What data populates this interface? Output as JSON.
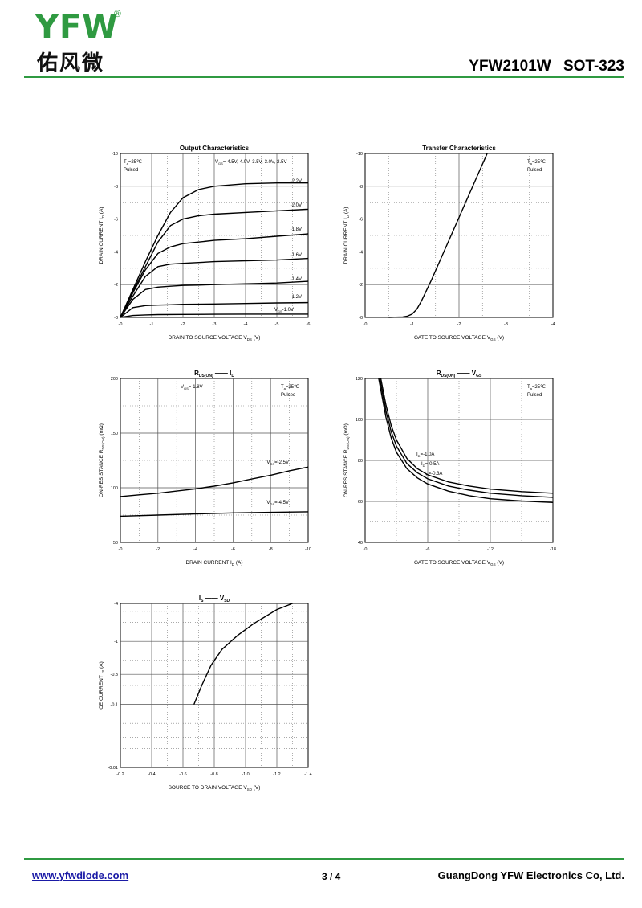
{
  "header": {
    "logo_text": "YFW",
    "logo_reg": "®",
    "logo_cn": "佑风微",
    "part_number": "YFW2101W SOT-323"
  },
  "footer": {
    "website": "www.yfwdiode.com",
    "page": "3 / 4",
    "company": "GuangDong YFW Electronics Co, Ltd."
  },
  "colors": {
    "brand_green": "#2f9a41",
    "link_blue": "#1a1aa6",
    "grid": "#555555"
  },
  "chart_data": [
    {
      "id": "output",
      "type": "line",
      "title": "Output Characteristics",
      "xlabel": "DRAIN TO SOURCE VOLTAGE",
      "xlabel_sym": "V",
      "xlabel_sub": "DS",
      "xlabel_unit": "(V)",
      "ylabel": "DRAIN CURRENT",
      "ylabel_sym": "I",
      "ylabel_sub": "D",
      "ylabel_unit": "(A)",
      "xlim": [
        0,
        -6
      ],
      "ylim": [
        0,
        -10
      ],
      "xticks": [
        "-0",
        "-1",
        "-2",
        "-3",
        "-4",
        "-5",
        "-6"
      ],
      "yticks": [
        "-0",
        "-2",
        "-4",
        "-6",
        "-8",
        "-10"
      ],
      "notes": [
        "T",
        "Pulsed"
      ],
      "note_ta": "=25℃",
      "vgs_note": "=-4.5V,-4.0V,-3.5V,-3.0V,-2.5V",
      "series": [
        {
          "name": "-2.2V",
          "x": [
            0,
            -0.4,
            -0.8,
            -1.2,
            -1.6,
            -2.0,
            -2.5,
            -3,
            -4,
            -5,
            -6
          ],
          "y": [
            0,
            -1.7,
            -3.4,
            -5.0,
            -6.4,
            -7.3,
            -7.8,
            -8.0,
            -8.15,
            -8.2,
            -8.2
          ]
        },
        {
          "name": "-2.0V",
          "x": [
            0,
            -0.4,
            -0.8,
            -1.2,
            -1.6,
            -2.0,
            -2.5,
            -3,
            -4,
            -5,
            -6
          ],
          "y": [
            0,
            -1.6,
            -3.1,
            -4.6,
            -5.6,
            -6.0,
            -6.2,
            -6.3,
            -6.4,
            -6.5,
            -6.6
          ]
        },
        {
          "name": "-1.8V",
          "x": [
            0,
            -0.4,
            -0.8,
            -1.2,
            -1.6,
            -2.0,
            -2.5,
            -3,
            -4,
            -5,
            -6
          ],
          "y": [
            0,
            -1.5,
            -2.9,
            -3.9,
            -4.3,
            -4.5,
            -4.6,
            -4.7,
            -4.8,
            -4.95,
            -5.1
          ]
        },
        {
          "name": "-1.6V",
          "x": [
            0,
            -0.4,
            -0.8,
            -1.2,
            -1.6,
            -2.0,
            -2.5,
            -3,
            -4,
            -5,
            -6
          ],
          "y": [
            0,
            -1.3,
            -2.5,
            -3.1,
            -3.25,
            -3.3,
            -3.35,
            -3.4,
            -3.45,
            -3.5,
            -3.6
          ]
        },
        {
          "name": "-1.4V",
          "x": [
            0,
            -0.4,
            -0.8,
            -1.2,
            -1.6,
            -2.0,
            -2.5,
            -3,
            -4,
            -5,
            -6
          ],
          "y": [
            0,
            -1.1,
            -1.7,
            -1.85,
            -1.9,
            -1.95,
            -1.97,
            -2.0,
            -2.05,
            -2.1,
            -2.2
          ]
        },
        {
          "name": "-1.2V",
          "x": [
            0,
            -0.4,
            -0.8,
            -1.2,
            -1.6,
            -2.0,
            -3,
            -4,
            -5,
            -6
          ],
          "y": [
            0,
            -0.6,
            -0.72,
            -0.75,
            -0.77,
            -0.8,
            -0.82,
            -0.85,
            -0.88,
            -0.9
          ]
        },
        {
          "name": "-1.0V",
          "x": [
            0,
            -0.4,
            -0.8,
            -1.2,
            -2,
            -3,
            -4,
            -5,
            -6
          ],
          "y": [
            0,
            -0.12,
            -0.15,
            -0.17,
            -0.18,
            -0.19,
            -0.2,
            -0.2,
            -0.2
          ]
        }
      ]
    },
    {
      "id": "transfer",
      "type": "line",
      "title": "Transfer Characteristics",
      "xlabel": "GATE TO SOURCE VOLTAGE",
      "xlabel_sym": "V",
      "xlabel_sub": "GS",
      "xlabel_unit": "(V)",
      "ylabel": "DRAIN CURRENT",
      "ylabel_sym": "I",
      "ylabel_sub": "D",
      "ylabel_unit": "(A)",
      "xlim": [
        0,
        -4
      ],
      "ylim": [
        0,
        -10
      ],
      "xticks": [
        "-0",
        "-1",
        "-2",
        "-3",
        "-4"
      ],
      "yticks": [
        "-0",
        "-2",
        "-4",
        "-6",
        "-8",
        "-10"
      ],
      "notes": [
        "T",
        "Pulsed"
      ],
      "note_ta": "=25℃",
      "series": [
        {
          "name": "",
          "x": [
            -0.5,
            -0.8,
            -0.9,
            -1.0,
            -1.1,
            -1.2,
            -1.4,
            -1.6,
            -1.8,
            -2.0,
            -2.2,
            -2.4,
            -2.6
          ],
          "y": [
            0,
            -0.03,
            -0.08,
            -0.2,
            -0.5,
            -1.0,
            -2.2,
            -3.5,
            -4.8,
            -6.1,
            -7.4,
            -8.7,
            -10.0
          ]
        }
      ]
    },
    {
      "id": "rds_id",
      "type": "line",
      "title": "R",
      "title_sub": "DS(ON)",
      "title_dash": "——",
      "title_rhs": "I",
      "title_rhs_sub": "D",
      "xlabel": "DRAIN CURRENT",
      "xlabel_sym": "I",
      "xlabel_sub": "D",
      "xlabel_unit": "(A)",
      "ylabel": "ON-RESISTANCE",
      "ylabel_sym": "R",
      "ylabel_sub": "DS(ON)",
      "ylabel_unit": "(mΩ)",
      "xlim": [
        0,
        -10
      ],
      "ylim": [
        50,
        200
      ],
      "xticks": [
        "-0",
        "-2",
        "-4",
        "-6",
        "-8",
        "-10"
      ],
      "yticks": [
        "50",
        "100",
        "150",
        "200"
      ],
      "notes": [
        "T",
        "Pulsed"
      ],
      "note_ta": "=25℃",
      "vgs_note": "=-1.8V",
      "series": [
        {
          "name": "=-2.5V",
          "x": [
            0,
            -1,
            -2,
            -3,
            -4,
            -5,
            -6,
            -7,
            -8,
            -9,
            -10
          ],
          "y": [
            92,
            93.5,
            95,
            97,
            99,
            101.5,
            104.5,
            108,
            111.5,
            115.5,
            119
          ]
        },
        {
          "name": "=-4.5V",
          "x": [
            0,
            -2,
            -4,
            -6,
            -8,
            -10
          ],
          "y": [
            74,
            75,
            76,
            77,
            77.5,
            78
          ]
        }
      ]
    },
    {
      "id": "rds_vgs",
      "type": "line",
      "title": "R",
      "title_sub": "DS(ON)",
      "title_dash": "——",
      "title_rhs": "V",
      "title_rhs_sub": "GS",
      "xlabel": "GATE TO SOURCE VOLTAGE",
      "xlabel_sym": "V",
      "xlabel_sub": "GS",
      "xlabel_unit": "(V)",
      "ylabel": "ON-RESISTANCE",
      "ylabel_sym": "R",
      "ylabel_sub": "DS(ON)",
      "ylabel_unit": "(mΩ)",
      "xlim": [
        0,
        -18
      ],
      "ylim": [
        40,
        120
      ],
      "xticks": [
        "-0",
        "-6",
        "-12",
        "-18"
      ],
      "yticks": [
        "40",
        "60",
        "80",
        "100",
        "120"
      ],
      "notes": [
        "T",
        "Pulsed"
      ],
      "note_ta": "=25℃",
      "series": [
        {
          "name": "=-1.0A",
          "x": [
            -1.5,
            -2,
            -2.5,
            -3,
            -4,
            -5,
            -6,
            -8,
            -10,
            -12,
            -15,
            -18
          ],
          "y": [
            120,
            107,
            97,
            90,
            81,
            76,
            73,
            69.5,
            67.5,
            66,
            64.8,
            64
          ]
        },
        {
          "name": "=-0.5A",
          "x": [
            -1.4,
            -2,
            -2.5,
            -3,
            -4,
            -5,
            -6,
            -8,
            -10,
            -12,
            -15,
            -18
          ],
          "y": [
            120,
            104,
            94,
            87,
            78.5,
            74,
            71,
            67.5,
            65.5,
            64,
            62.8,
            62
          ]
        },
        {
          "name": "=-0.3A",
          "x": [
            -1.3,
            -2,
            -2.5,
            -3,
            -4,
            -5,
            -6,
            -8,
            -10,
            -12,
            -15,
            -18
          ],
          "y": [
            120,
            101,
            91,
            84,
            76,
            71.5,
            68.5,
            65,
            62.8,
            61.3,
            60.2,
            59.5
          ]
        }
      ]
    },
    {
      "id": "is_vsd",
      "type": "line",
      "title": "I",
      "title_sub": "S",
      "title_dash": "——",
      "title_rhs": "V",
      "title_rhs_sub": "SD",
      "xlabel": "SOURCE TO DRAIN VOLTAGE",
      "xlabel_sym": "V",
      "xlabel_sub": "SD",
      "xlabel_unit": "(V)",
      "ylabel": "CE CURRENT",
      "ylabel_sym": "I",
      "ylabel_sub": "S",
      "ylabel_unit": "(A)",
      "xlim": [
        -0.2,
        -1.4
      ],
      "ylim": [
        -0.01,
        -4
      ],
      "yscale": "log",
      "xticks": [
        "-0.2",
        "-0.4",
        "-0.6",
        "-0.8",
        "-1.0",
        "-1.2",
        "-1.4"
      ],
      "yticks": [
        "-0.01",
        "-0.1",
        "-0.3",
        "-1",
        "-4"
      ],
      "series": [
        {
          "name": "",
          "x": [
            -0.67,
            -0.72,
            -0.78,
            -0.85,
            -0.95,
            -1.05,
            -1.2,
            -1.3
          ],
          "y": [
            -0.1,
            -0.2,
            -0.42,
            -0.75,
            -1.25,
            -1.9,
            -3.2,
            -4.0
          ]
        }
      ]
    }
  ]
}
